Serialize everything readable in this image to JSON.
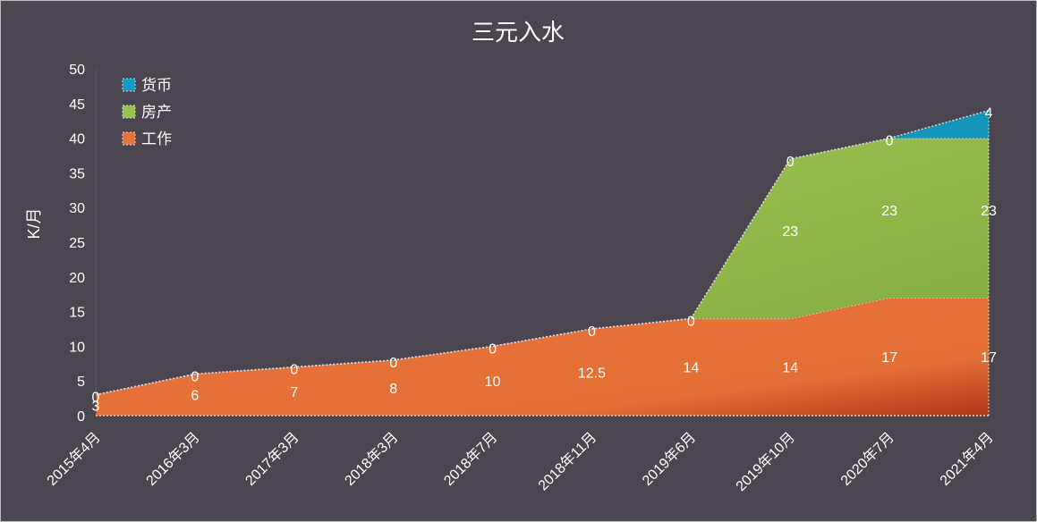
{
  "chart_data": {
    "type": "area",
    "stacked": true,
    "title": "三元入水",
    "xlabel": "",
    "ylabel": "K/月",
    "ylim": [
      0,
      50
    ],
    "yticks": [
      0,
      5,
      10,
      15,
      20,
      25,
      30,
      35,
      40,
      45,
      50
    ],
    "categories": [
      "2015年4月",
      "2016年3月",
      "2017年3月",
      "2018年3月",
      "2018年7月",
      "2018年11月",
      "2019年6月",
      "2019年10月",
      "2020年7月",
      "2021年4月"
    ],
    "series": [
      {
        "name": "工作",
        "color": "#e8743b",
        "values": [
          3,
          6,
          7,
          8,
          10,
          12.5,
          14,
          14,
          17,
          17
        ],
        "labels": [
          "3",
          "6",
          "7",
          "8",
          "10",
          "12.5",
          "14",
          "14",
          "17",
          "17"
        ]
      },
      {
        "name": "房产",
        "color": "#93c24e",
        "values": [
          0,
          0,
          0,
          0,
          0,
          0,
          0,
          23,
          23,
          23
        ],
        "labels": [
          "",
          "",
          "",
          "",
          "",
          "",
          "",
          "23",
          "23",
          "23"
        ]
      },
      {
        "name": "货币",
        "color": "#139cc3",
        "values": [
          0,
          0,
          0,
          0,
          0,
          0,
          0,
          0,
          0,
          4
        ],
        "labels": [
          "0",
          "0",
          "0",
          "0",
          "0",
          "0",
          "0",
          "0",
          "0",
          "4"
        ]
      }
    ],
    "legend": {
      "position": "top-left",
      "order": [
        "货币",
        "房产",
        "工作"
      ]
    },
    "grid": false
  }
}
